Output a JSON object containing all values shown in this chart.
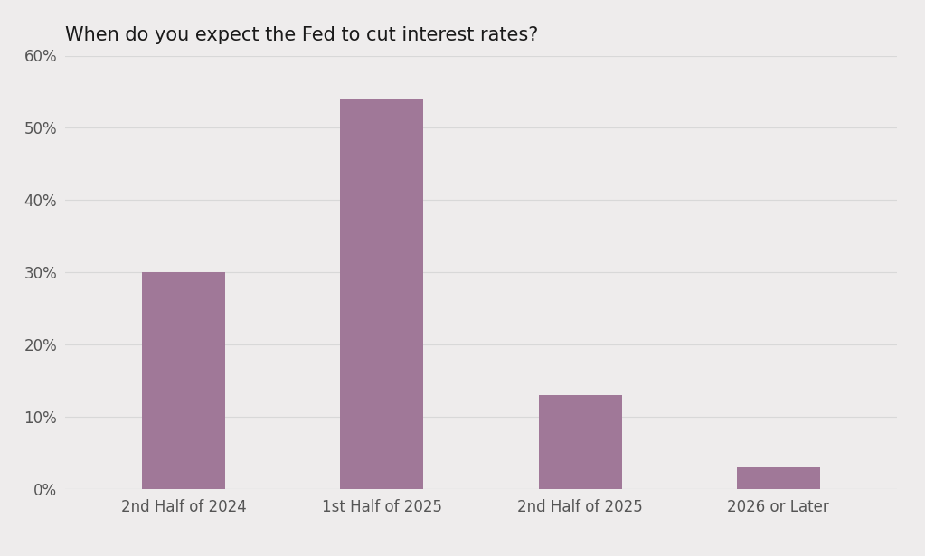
{
  "title": "When do you expect the Fed to cut interest rates?",
  "categories": [
    "2nd Half of 2024",
    "1st Half of 2025",
    "2nd Half of 2025",
    "2026 or Later"
  ],
  "values": [
    30,
    54,
    13,
    3
  ],
  "bar_color": "#a07898",
  "background_color": "#eeecec",
  "ylim": [
    0,
    60
  ],
  "yticks": [
    0,
    10,
    20,
    30,
    40,
    50,
    60
  ],
  "title_fontsize": 15,
  "tick_label_fontsize": 12,
  "title_color": "#1a1a1a",
  "tick_color": "#555555",
  "bar_width": 0.42,
  "grid_color": "#d8d8d8"
}
